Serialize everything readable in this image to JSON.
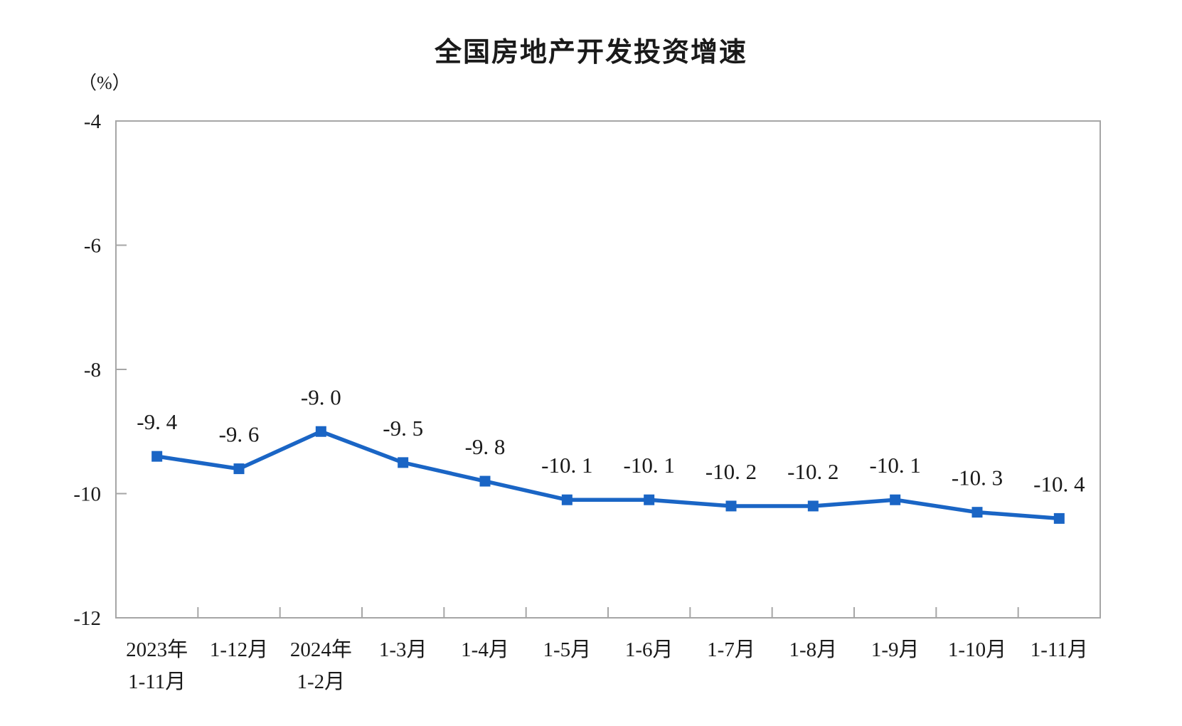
{
  "title": "全国房地产开发投资增速",
  "unit_label": "（%）",
  "colors": {
    "line": "#1a65c5",
    "marker": "#1a65c5",
    "axis": "#a6a6a6",
    "text": "#1a1a1a"
  },
  "chart_data": {
    "type": "line",
    "title": "全国房地产开发投资增速",
    "ylabel": "（%）",
    "xlabel": "",
    "categories": [
      "2023年\n1-11月",
      "1-12月",
      "2024年\n1-2月",
      "1-3月",
      "1-4月",
      "1-5月",
      "1-6月",
      "1-7月",
      "1-8月",
      "1-9月",
      "1-10月",
      "1-11月"
    ],
    "values": [
      -9.4,
      -9.6,
      -9.0,
      -9.5,
      -9.8,
      -10.1,
      -10.1,
      -10.2,
      -10.2,
      -10.1,
      -10.3,
      -10.4
    ],
    "point_labels": [
      "-9. 4",
      "-9. 6",
      "-9. 0",
      "-9. 5",
      "-9. 8",
      "-10. 1",
      "-10. 1",
      "-10. 2",
      "-10. 2",
      "-10. 1",
      "-10. 3",
      "-10. 4"
    ],
    "ylim": [
      -12,
      -4
    ],
    "yticks": [
      -4,
      -6,
      -8,
      -10,
      -12
    ],
    "ytick_labels": [
      "-4",
      "-6",
      "-8",
      "-10",
      "-12"
    ],
    "grid": false,
    "legend_position": "none",
    "marker": "square"
  }
}
